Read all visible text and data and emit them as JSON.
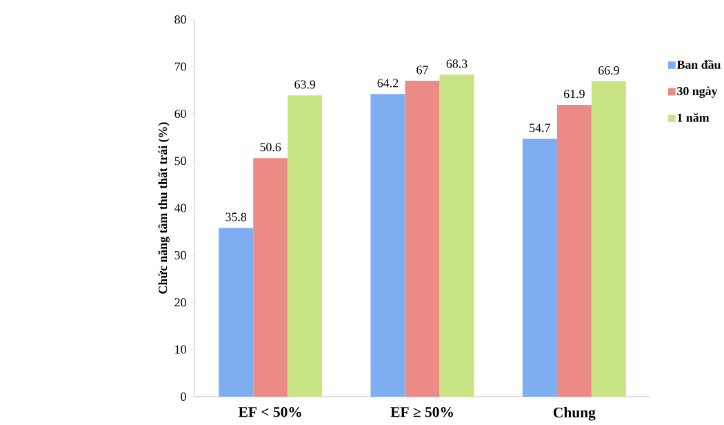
{
  "chart_data": {
    "type": "bar",
    "ylabel": "Chức năng tâm thu thất trái (%)",
    "categories": [
      "EF < 50%",
      "EF ≥ 50%",
      "Chung"
    ],
    "series": [
      {
        "name": "Ban đầu",
        "color": "#7eaef0",
        "values": [
          35.8,
          64.2,
          54.7
        ]
      },
      {
        "name": "30 ngày",
        "color": "#ec8a86",
        "values": [
          50.6,
          67,
          61.9
        ]
      },
      {
        "name": "1 năm",
        "color": "#c9e484",
        "values": [
          63.9,
          68.3,
          66.9
        ]
      }
    ],
    "ylim": [
      0,
      80
    ],
    "yticks": [
      0,
      10,
      20,
      30,
      40,
      50,
      60,
      70,
      80
    ],
    "data_labels": true,
    "legend": "right",
    "grid": false
  }
}
